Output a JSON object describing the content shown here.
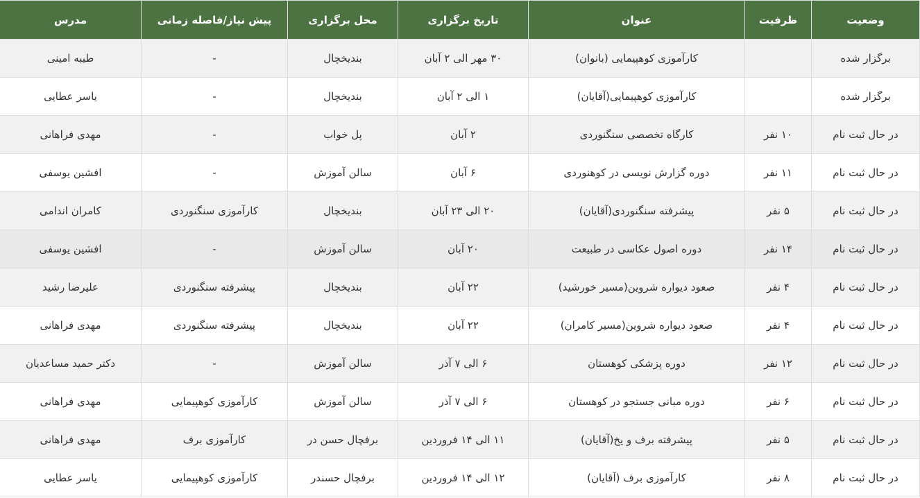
{
  "colors": {
    "header_bg": "#4d7343",
    "header_text": "#ffffff",
    "row_alt": "#f1f1f1",
    "row_white": "#ffffff",
    "row_highlight": "#e9e9e9",
    "border": "#dddddd",
    "text": "#333333"
  },
  "table": {
    "columns": [
      {
        "key": "status",
        "label": "وضعیت"
      },
      {
        "key": "capacity",
        "label": "ظرفیت"
      },
      {
        "key": "title",
        "label": "عنوان"
      },
      {
        "key": "date",
        "label": "تاریخ برگزاری"
      },
      {
        "key": "venue",
        "label": "محل برگزاری"
      },
      {
        "key": "prerequisite",
        "label": "پیش نیاز/فاصله زمانی"
      },
      {
        "key": "instructor",
        "label": "مدرس"
      }
    ],
    "rows": [
      {
        "status": "برگزار شده",
        "capacity": "",
        "title": "کارآموزی کوهپیمایی (بانوان)",
        "date": "۳۰ مهر الی ۲ آبان",
        "venue": "بندیخچال",
        "prerequisite": "-",
        "instructor": "طیبه امینی",
        "highlighted": false
      },
      {
        "status": "برگزار شده",
        "capacity": "",
        "title": "کارآموزی کوهپیمایی(آقایان)",
        "date": "۱ الی ۲ آبان",
        "venue": "بندیخچال",
        "prerequisite": "-",
        "instructor": "یاسر عطایی",
        "highlighted": false
      },
      {
        "status": "در حال ثبت نام",
        "capacity": "۱۰ نفر",
        "title": "کارگاه تخصصی سنگنوردی",
        "date": "۲ آبان",
        "venue": "پل خواب",
        "prerequisite": "-",
        "instructor": "مهدی فراهانی",
        "highlighted": false
      },
      {
        "status": "در حال ثبت نام",
        "capacity": "۱۱ نفر",
        "title": "دوره گزارش نویسی در کوهنوردی",
        "date": "۶ آبان",
        "venue": "سالن آموزش",
        "prerequisite": "-",
        "instructor": "افشین یوسفی",
        "highlighted": false
      },
      {
        "status": "در حال ثبت نام",
        "capacity": "۵ نفر",
        "title": "پیشرفته سنگنوردی(آقایان)",
        "date": "۲۰ الی ۲۳ آبان",
        "venue": "بندیخچال",
        "prerequisite": "کارآموزی سنگنوردی",
        "instructor": "کامران اندامی",
        "highlighted": false
      },
      {
        "status": "در حال ثبت نام",
        "capacity": "۱۴ نفر",
        "title": "دوره اصول عکاسی در طبیعت",
        "date": "۲۰ آبان",
        "venue": "سالن آموزش",
        "prerequisite": "-",
        "instructor": "افشین یوسفی",
        "highlighted": true
      },
      {
        "status": "در حال ثبت نام",
        "capacity": "۴ نفر",
        "title": "صعود دیواره شروین(مسیر خورشید)",
        "date": "۲۲ آبان",
        "venue": "بندیخچال",
        "prerequisite": "پیشرفته سنگنوردی",
        "instructor": "علیرضا رشید",
        "highlighted": false
      },
      {
        "status": "در حال ثبت نام",
        "capacity": "۴ نفر",
        "title": "صعود دیواره شروین(مسیر کامران)",
        "date": "۲۲ آبان",
        "venue": "بندیخچال",
        "prerequisite": "پیشرفته سنگنوردی",
        "instructor": "مهدی فراهانی",
        "highlighted": false
      },
      {
        "status": "در حال ثبت نام",
        "capacity": "۱۲ نفر",
        "title": "دوره پزشکی کوهستان",
        "date": "۶ الی ۷ آذر",
        "venue": "سالن آموزش",
        "prerequisite": "-",
        "instructor": "دکتر حمید مساعدیان",
        "highlighted": false
      },
      {
        "status": "در حال ثبت نام",
        "capacity": "۶ نفر",
        "title": "دوره مبانی جستجو در کوهستان",
        "date": "۶ الی ۷ آذر",
        "venue": "سالن آموزش",
        "prerequisite": "کارآموزی کوهپیمایی",
        "instructor": "مهدی فراهانی",
        "highlighted": false
      },
      {
        "status": "در حال ثبت نام",
        "capacity": "۵ نفر",
        "title": "پیشرفته برف و یخ(آقایان)",
        "date": "۱۱ الی ۱۴ فروردین",
        "venue": "برفچال حسن در",
        "prerequisite": "کارآموزی برف",
        "instructor": "مهدی فراهانی",
        "highlighted": false
      },
      {
        "status": "در حال ثبت نام",
        "capacity": "۸ نفر",
        "title": "کارآموزی برف (آقایان)",
        "date": "۱۲ الی ۱۴ فروردین",
        "venue": "برفچال حسندر",
        "prerequisite": "کارآموزی کوهپیمایی",
        "instructor": "یاسر عطایی",
        "highlighted": false
      }
    ]
  }
}
